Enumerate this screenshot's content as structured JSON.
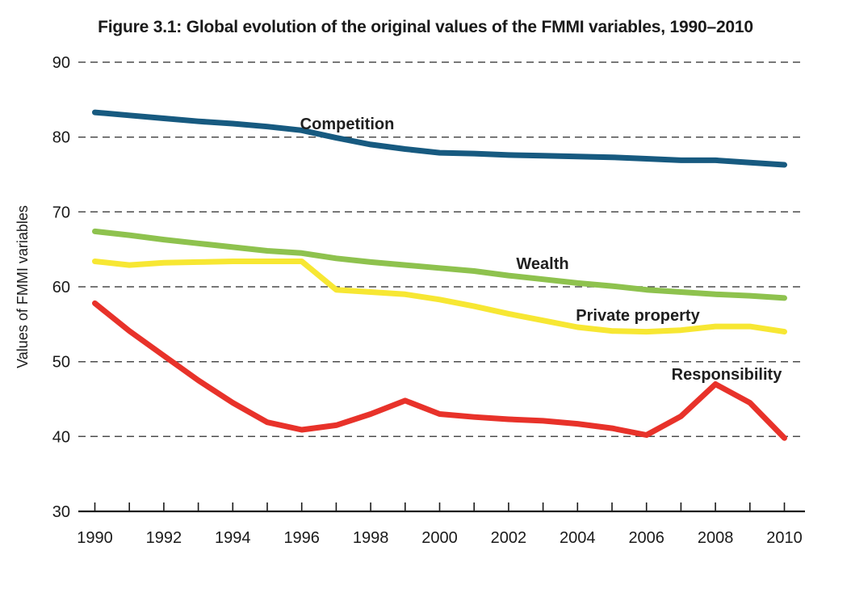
{
  "title": "Figure 3.1: Global evolution of the original values of the FMMI variables, 1990–2010",
  "chart_data": {
    "type": "line",
    "title": "Figure 3.1: Global evolution of the original values of the FMMI variables, 1990–2010",
    "xlabel": "",
    "ylabel": "Values of FMMI variables",
    "ylim": [
      30,
      90
    ],
    "yticks": [
      30,
      40,
      50,
      60,
      70,
      80,
      90
    ],
    "x": [
      1990,
      1991,
      1992,
      1993,
      1994,
      1995,
      1996,
      1997,
      1998,
      1999,
      2000,
      2001,
      2002,
      2003,
      2004,
      2005,
      2006,
      2007,
      2008,
      2009,
      2010
    ],
    "xtick_labels": [
      1990,
      1992,
      1994,
      1996,
      1998,
      2000,
      2002,
      2004,
      2006,
      2008,
      2010
    ],
    "grid": "horizontal-dashed",
    "grid_color": "#4c4c4c",
    "axis_color": "#1a1a1a",
    "legend": "inline-labels-near-lines",
    "series": [
      {
        "name": "Competition",
        "color": "#175a80",
        "values": [
          83.3,
          82.9,
          82.5,
          82.1,
          81.8,
          81.4,
          80.9,
          79.9,
          79.0,
          78.4,
          77.9,
          77.8,
          77.6,
          77.5,
          77.4,
          77.3,
          77.1,
          76.9,
          76.9,
          76.6,
          76.3
        ]
      },
      {
        "name": "Wealth",
        "color": "#8ec24e",
        "values": [
          67.4,
          66.9,
          66.3,
          65.8,
          65.3,
          64.8,
          64.5,
          63.8,
          63.3,
          62.9,
          62.5,
          62.1,
          61.5,
          61.0,
          60.5,
          60.1,
          59.6,
          59.3,
          59.0,
          58.8,
          58.5
        ]
      },
      {
        "name": "Private property",
        "color": "#f7e733",
        "values": [
          63.4,
          62.9,
          63.2,
          63.3,
          63.4,
          63.4,
          63.4,
          59.6,
          59.3,
          59.0,
          58.3,
          57.4,
          56.4,
          55.5,
          54.6,
          54.1,
          54.0,
          54.2,
          54.7,
          54.7,
          54.0
        ]
      },
      {
        "name": "Responsibility",
        "color": "#e8322a",
        "values": [
          57.8,
          54.1,
          50.8,
          47.5,
          44.5,
          41.9,
          40.9,
          41.5,
          43.0,
          44.8,
          43.0,
          42.6,
          42.3,
          42.1,
          41.7,
          41.1,
          40.2,
          42.7,
          47.0,
          44.5,
          39.8
        ]
      }
    ]
  }
}
